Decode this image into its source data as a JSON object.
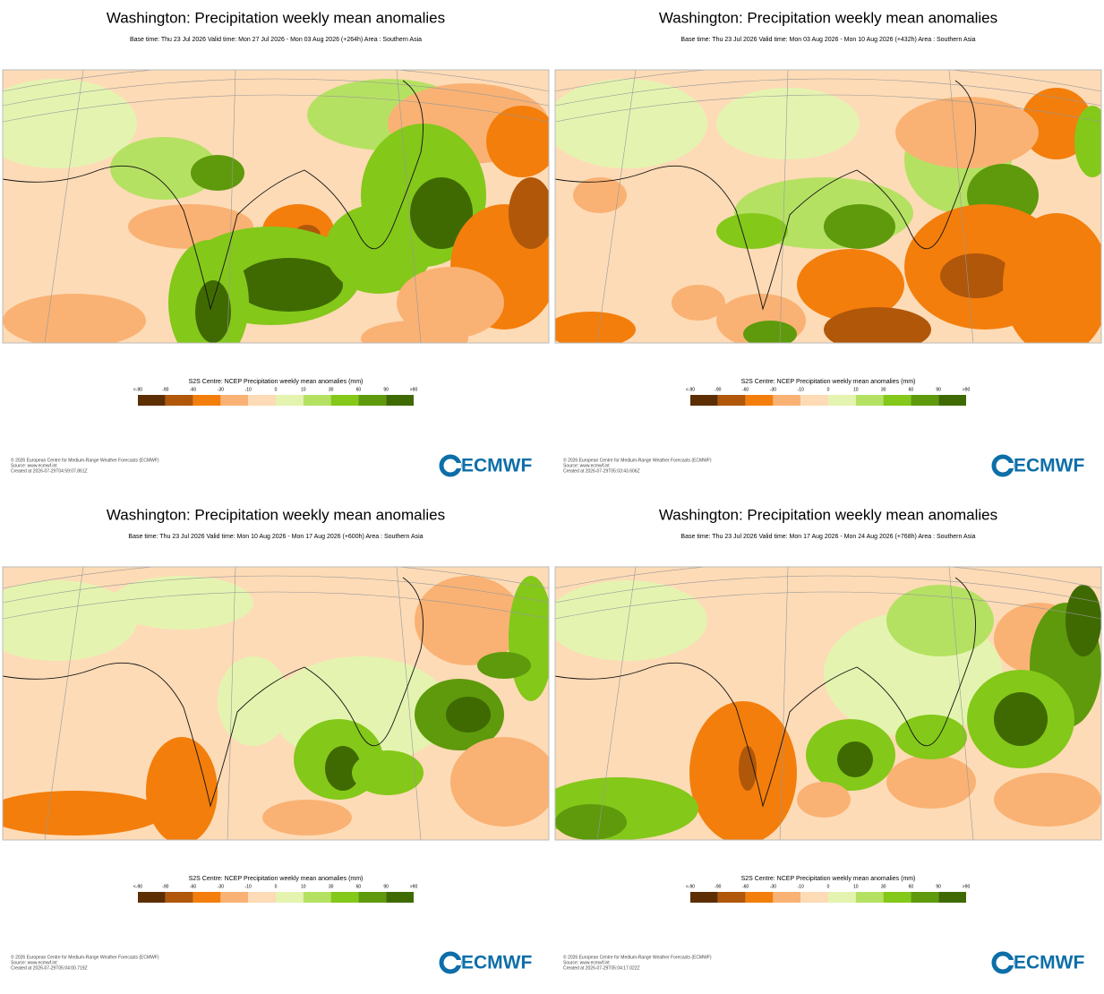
{
  "panels": [
    {
      "title": "Washington: Precipitation weekly mean anomalies",
      "subtitle": "Base time: Thu 23 Jul 2026 Valid time: Mon 27 Jul 2026 - Mon 03 Aug 2026 (+264h) Area : Southern Asia",
      "created": "Created at 2026-07-29T04:59:07.861Z"
    },
    {
      "title": "Washington: Precipitation weekly mean anomalies",
      "subtitle": "Base time: Thu 23 Jul 2026 Valid time: Mon 03 Aug 2026 - Mon 10 Aug 2026 (+432h) Area : Southern Asia",
      "created": "Created at 2026-07-29T05:03:43.606Z"
    },
    {
      "title": "Washington: Precipitation weekly mean anomalies",
      "subtitle": "Base time: Thu 23 Jul 2026 Valid time: Mon 10 Aug 2026 - Mon 17 Aug 2026 (+600h) Area : Southern Asia",
      "created": "Created at 2026-07-29T05:04:00.719Z"
    },
    {
      "title": "Washington: Precipitation weekly mean anomalies",
      "subtitle": "Base time: Thu 23 Jul 2026 Valid time: Mon 17 Aug 2026 - Mon 24 Aug 2026 (+768h) Area : Southern Asia",
      "created": "Created at 2026-07-29T05:04:17.022Z"
    }
  ],
  "colorbar": {
    "title": "S2S Centre: NCEP Precipitation weekly mean anomalies (mm)",
    "labels": [
      "<-90",
      "-90",
      "-60",
      "-30",
      "-10",
      "0",
      "10",
      "30",
      "60",
      "90",
      ">90"
    ],
    "colors": [
      "#5c2e02",
      "#b0570a",
      "#f37e0c",
      "#f9b274",
      "#fddbb6",
      "#e4f4b0",
      "#b5e163",
      "#84c81a",
      "#5e9a0c",
      "#3f6a02"
    ]
  },
  "copyright": "© 2026 European Centre for Medium-Range Weather Forecasts (ECMWF)",
  "source": "Source: www.ecmwf.int",
  "logo": "ECMWF"
}
